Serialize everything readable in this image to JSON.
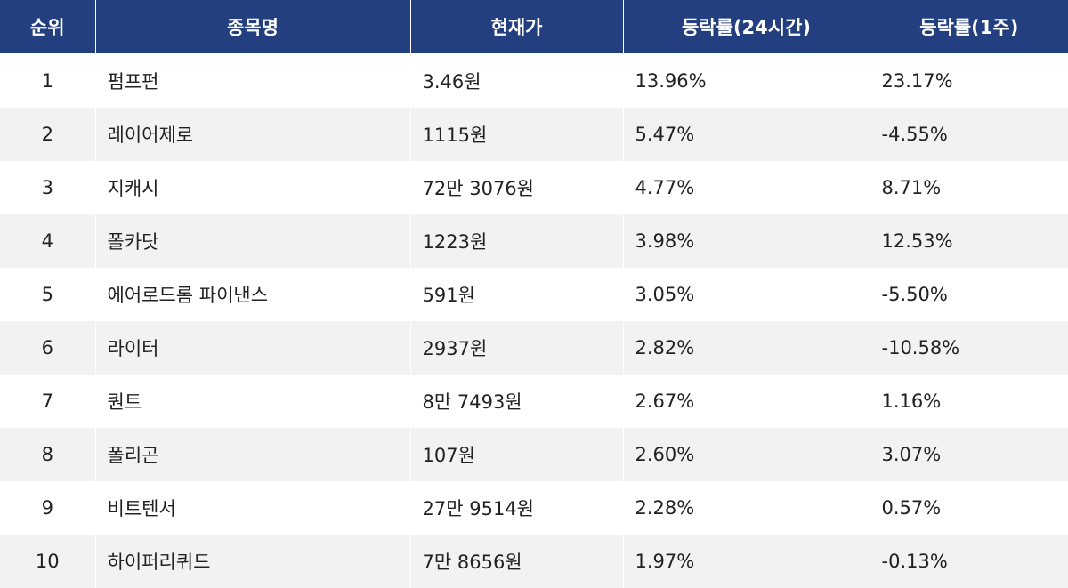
{
  "headers": [
    "순위",
    "종목명",
    "현재가",
    "등락률(24시간)",
    "등락률(1주)"
  ],
  "rows": [
    {
      "rank": "1",
      "name": "펌프펀",
      "price": "3.46원",
      "change_24h": "13.96%",
      "change_1w": "23.17%"
    },
    {
      "rank": "2",
      "name": "레이어제로",
      "price": "1115원",
      "change_24h": "5.47%",
      "change_1w": "-4.55%"
    },
    {
      "rank": "3",
      "name": "지캐시",
      "price": "72만 3076원",
      "change_24h": "4.77%",
      "change_1w": "8.71%"
    },
    {
      "rank": "4",
      "name": "폴카닷",
      "price": "1223원",
      "change_24h": "3.98%",
      "change_1w": "12.53%"
    },
    {
      "rank": "5",
      "name": "에어로드롬 파이낸스",
      "price": "591원",
      "change_24h": "3.05%",
      "change_1w": "-5.50%"
    },
    {
      "rank": "6",
      "name": "라이터",
      "price": "2937원",
      "change_24h": "2.82%",
      "change_1w": "-10.58%"
    },
    {
      "rank": "7",
      "name": "퀀트",
      "price": "8만 7493원",
      "change_24h": "2.67%",
      "change_1w": "1.16%"
    },
    {
      "rank": "8",
      "name": "폴리곤",
      "price": "107원",
      "change_24h": "2.60%",
      "change_1w": "3.07%"
    },
    {
      "rank": "9",
      "name": "비트텐서",
      "price": "27만 9514원",
      "change_24h": "2.28%",
      "change_1w": "0.57%"
    },
    {
      "rank": "10",
      "name": "하이퍼리퀴드",
      "price": "7만 8656원",
      "change_24h": "1.97%",
      "change_1w": "-0.13%"
    }
  ],
  "colors": {
    "header_bg": "#243f7f",
    "header_text": "#ffffff",
    "row_alt_bg": "#f2f2f2",
    "text": "#222222"
  }
}
